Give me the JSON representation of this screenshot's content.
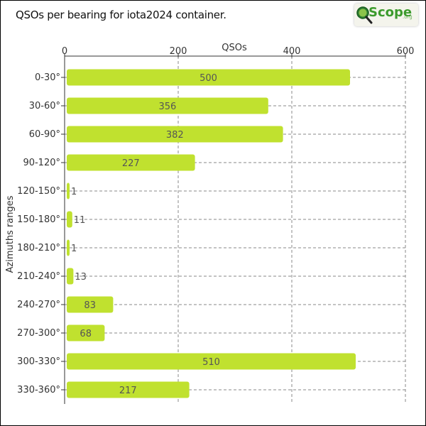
{
  "title": "QSOs per bearing for iota2024 container.",
  "logo": {
    "text": "Scope",
    "suffix": ".org",
    "icon": "magnifier-q-icon"
  },
  "colors": {
    "bar": "#c0e12f",
    "grid": "#888888",
    "text": "#333333",
    "value_text": "#555555"
  },
  "chart_data": {
    "type": "bar",
    "orientation": "horizontal",
    "title": "QSOs per bearing for iota2024 container.",
    "xlabel": "QSOs",
    "ylabel": "Azimuths ranges",
    "xlim": [
      0,
      600
    ],
    "xticks": [
      0,
      200,
      400,
      600
    ],
    "x_axis_position": "top",
    "grid": true,
    "categories": [
      "0-30°",
      "30-60°",
      "60-90°",
      "90-120°",
      "120-150°",
      "150-180°",
      "180-210°",
      "210-240°",
      "240-270°",
      "270-300°",
      "300-330°",
      "330-360°"
    ],
    "values": [
      500,
      356,
      382,
      227,
      1,
      11,
      1,
      13,
      83,
      68,
      510,
      217
    ]
  }
}
